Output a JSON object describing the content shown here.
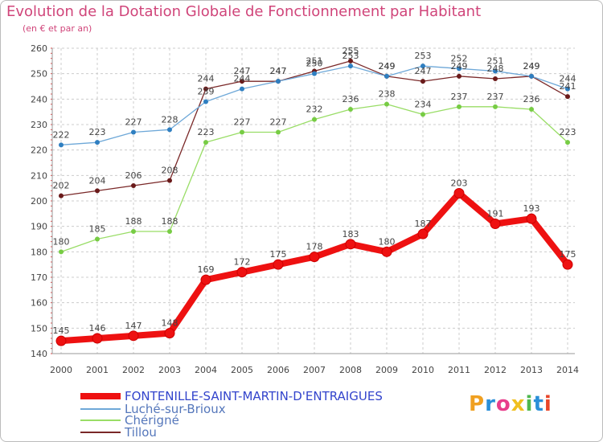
{
  "title": "Evolution de la Dotation Globale de Fonctionnement par Habitant",
  "subtitle": "(en € et par an)",
  "logo": {
    "text": "Proxiti",
    "colors": [
      "#f0a020",
      "#2a8fd8",
      "#e83e8c",
      "#f0c020",
      "#4fb84f",
      "#2a8fd8",
      "#e8462a"
    ]
  },
  "chart_data": {
    "type": "line",
    "x": [
      2000,
      2001,
      2002,
      2003,
      2004,
      2005,
      2006,
      2007,
      2008,
      2009,
      2010,
      2011,
      2012,
      2013,
      2014
    ],
    "ylim": [
      140,
      260
    ],
    "yticks": [
      140,
      150,
      160,
      170,
      180,
      190,
      200,
      210,
      220,
      230,
      240,
      250,
      260
    ],
    "grid": true,
    "legend_position": "bottom",
    "series": [
      {
        "name": "FONTENILLE-SAINT-MARTIN-D'ENTRAIGUES",
        "color": "#ee1111",
        "marker": "#ee1111",
        "thick": true,
        "values": [
          145,
          146,
          147,
          148,
          169,
          172,
          175,
          178,
          183,
          180,
          187,
          203,
          191,
          193,
          175
        ]
      },
      {
        "name": "Luché-sur-Brioux",
        "color": "#6ea8d8",
        "marker": "#2f7fc1",
        "thick": false,
        "values": [
          222,
          223,
          227,
          228,
          239,
          244,
          247,
          250,
          253,
          249,
          253,
          252,
          251,
          249,
          244
        ]
      },
      {
        "name": "Chérigné",
        "color": "#99dd66",
        "marker": "#77cc44",
        "thick": false,
        "values": [
          180,
          185,
          188,
          188,
          223,
          227,
          227,
          232,
          236,
          238,
          234,
          237,
          237,
          236,
          223
        ]
      },
      {
        "name": "Tillou",
        "color": "#7a2828",
        "marker": "#6a1a1a",
        "thick": false,
        "values": [
          202,
          204,
          206,
          208,
          244,
          247,
          247,
          251,
          255,
          249,
          247,
          249,
          248,
          249,
          241
        ]
      }
    ]
  }
}
